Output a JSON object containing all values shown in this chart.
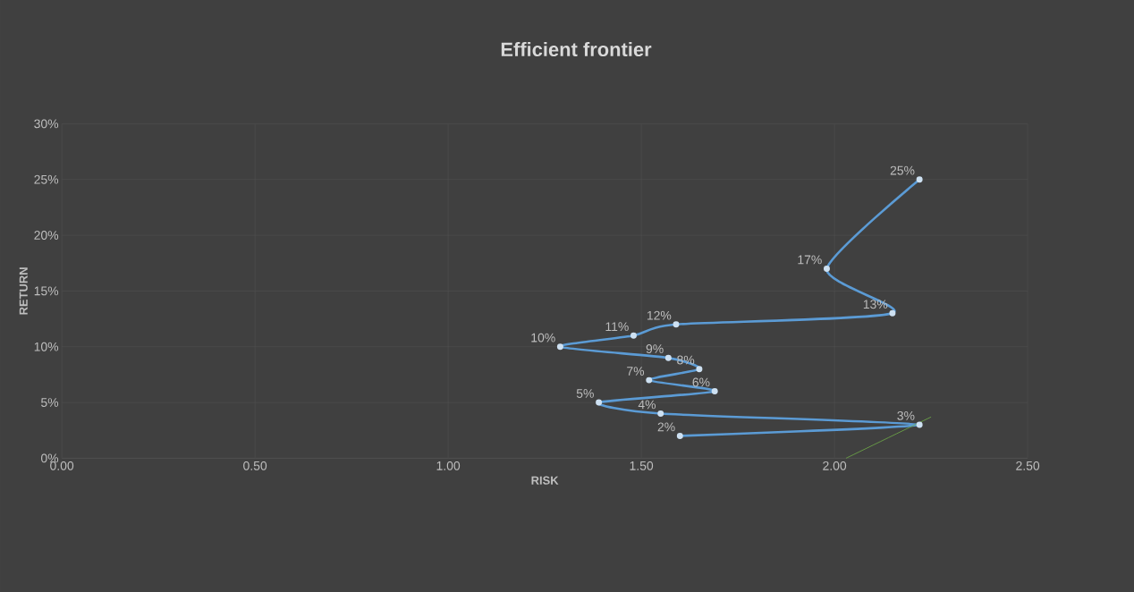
{
  "chart_data": {
    "type": "line",
    "title": "Efficient frontier",
    "xlabel": "RISK",
    "ylabel": "RETURN",
    "x": [
      1.6,
      2.22,
      1.55,
      1.39,
      1.69,
      1.52,
      1.65,
      1.57,
      1.29,
      1.48,
      1.59,
      2.15,
      1.98,
      2.22
    ],
    "series": [
      {
        "color": "#5b9bd5",
        "values": [
          0.02,
          0.03,
          0.04,
          0.05,
          0.06,
          0.07,
          0.08,
          0.09,
          0.1,
          0.11,
          0.12,
          0.13,
          0.17,
          0.25
        ],
        "value_labels": [
          "2%",
          "3%",
          "4%",
          "5%",
          "6%",
          "7%",
          "8%",
          "9%",
          "10%",
          "11%",
          "12%",
          "13%",
          "17%",
          "25%"
        ],
        "marker": "circle"
      },
      {
        "type": "line",
        "color": "#70ad47",
        "x": [
          2.03,
          2.25
        ],
        "values": [
          0,
          0.037
        ],
        "marker": "none"
      }
    ],
    "xlim": [
      0,
      2.5
    ],
    "ylim": [
      0,
      0.3
    ],
    "xticks": [
      {
        "value": 0,
        "label": "0.00"
      },
      {
        "value": 0.5,
        "label": "0.50"
      },
      {
        "value": 1,
        "label": "1.00"
      },
      {
        "value": 1.5,
        "label": "1.50"
      },
      {
        "value": 2,
        "label": "2.00"
      },
      {
        "value": 2.5,
        "label": "2.50"
      }
    ],
    "yticks": [
      {
        "value": 0,
        "label": "0%"
      },
      {
        "value": 0.05,
        "label": "5%"
      },
      {
        "value": 0.1,
        "label": "10%"
      },
      {
        "value": 0.15,
        "label": "15%"
      },
      {
        "value": 0.2,
        "label": "20%"
      },
      {
        "value": 0.25,
        "label": "25%"
      },
      {
        "value": 0.3,
        "label": "30%"
      }
    ],
    "grid": true
  }
}
